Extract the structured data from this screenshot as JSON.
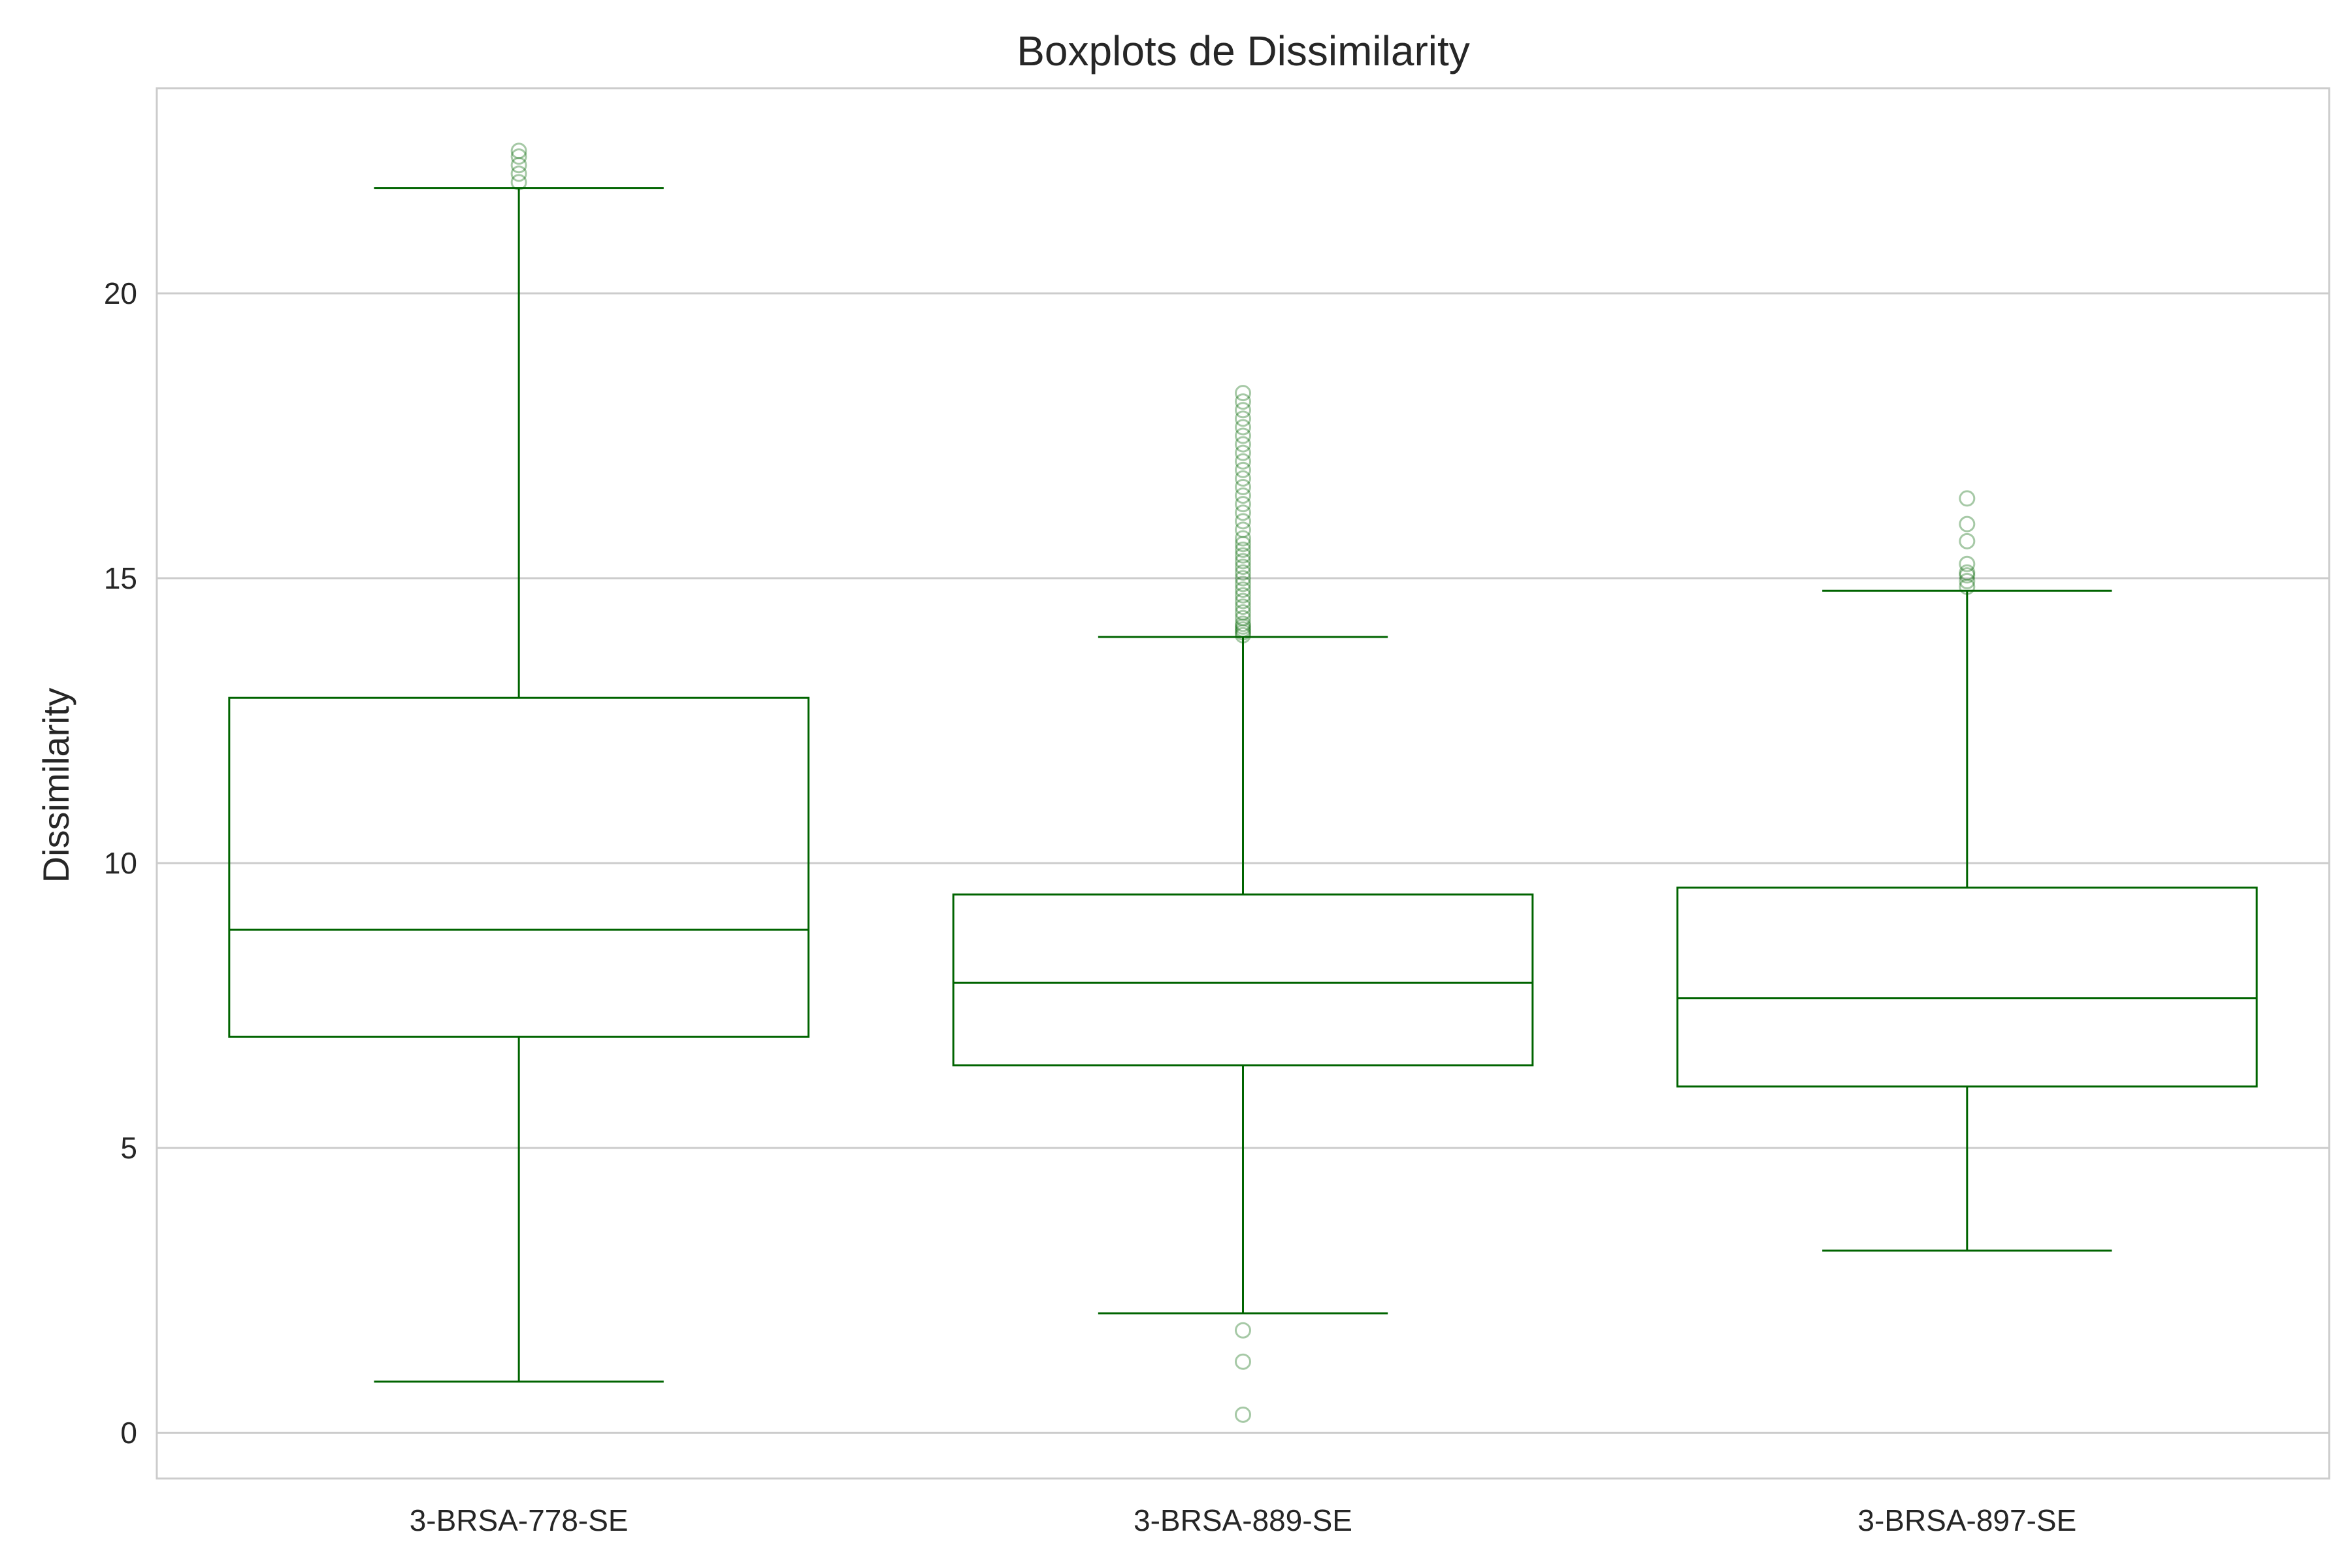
{
  "chart_data": {
    "type": "boxplot",
    "title": "Boxplots de Dissimilarity",
    "xlabel": "",
    "ylabel": "Dissimilarity",
    "ylim": [
      -0.8,
      23.6
    ],
    "yticks": [
      0,
      5,
      10,
      15,
      20
    ],
    "grid": "horizontal",
    "color": "#006400",
    "categories": [
      "3-BRSA-778-SE",
      "3-BRSA-889-SE",
      "3-BRSA-897-SE"
    ],
    "boxes": [
      {
        "category": "3-BRSA-778-SE",
        "whisker_low": 0.9,
        "q1": 6.95,
        "median": 8.83,
        "q3": 12.9,
        "whisker_high": 21.85,
        "outliers": [
          21.95,
          22.1,
          22.25,
          22.4,
          22.5
        ]
      },
      {
        "category": "3-BRSA-889-SE",
        "whisker_low": 2.1,
        "q1": 6.45,
        "median": 7.9,
        "q3": 9.45,
        "whisker_high": 13.97,
        "outliers": [
          0.32,
          1.25,
          1.8,
          14.0,
          14.05,
          14.1,
          14.15,
          14.2,
          14.3,
          14.4,
          14.5,
          14.6,
          14.7,
          14.8,
          14.9,
          15.0,
          15.1,
          15.2,
          15.3,
          15.4,
          15.5,
          15.6,
          15.7,
          15.85,
          16.0,
          16.15,
          16.3,
          16.45,
          16.6,
          16.75,
          16.9,
          17.05,
          17.2,
          17.35,
          17.5,
          17.65,
          17.8,
          17.95,
          18.1,
          18.25
        ]
      },
      {
        "category": "3-BRSA-897-SE",
        "whisker_low": 3.2,
        "q1": 6.08,
        "median": 7.63,
        "q3": 9.57,
        "whisker_high": 14.78,
        "outliers": [
          14.85,
          14.95,
          15.05,
          15.1,
          15.25,
          15.65,
          15.95,
          16.4
        ]
      }
    ]
  }
}
